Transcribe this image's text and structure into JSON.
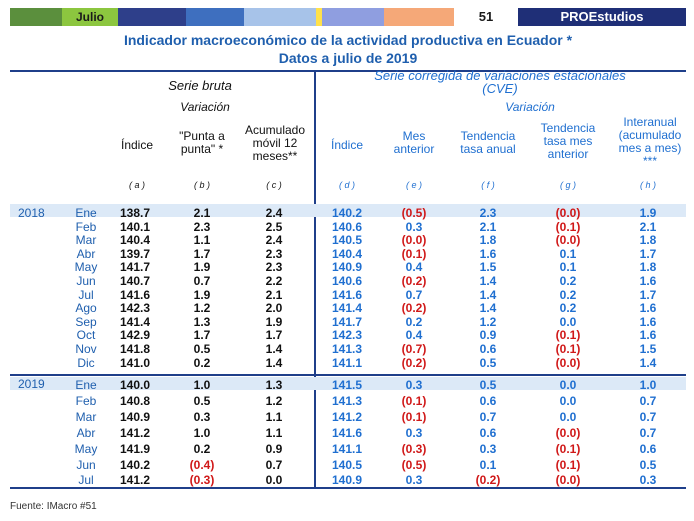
{
  "header_band": {
    "month": "Julio",
    "issue": "51",
    "brand": "PROEstudios"
  },
  "title_line1": "Indicador macroeconómico de la actividad  productiva en Ecuador *",
  "title_line2": "Datos a julio de 2019",
  "headers": {
    "serie_bruta": "Serie bruta",
    "variacion_left": "Variación",
    "serie_corregida_1": "Serie corregida de variaciones estacionales",
    "serie_corregida_2": "(CVE)",
    "variacion_right": "Variación",
    "a1": "Índice",
    "b1": "\"Punta a",
    "b2": "punta\" *",
    "c1": "Acumulado",
    "c2": "móvil 12",
    "c3": "meses**",
    "d1": "Índice",
    "e1": "Mes",
    "e2": "anterior",
    "f1": "Tendencia",
    "f2": "tasa anual",
    "g1": "Tendencia",
    "g2": "tasa mes",
    "g3": "anterior",
    "h1": "Interanual",
    "h2": "(acumulado",
    "h3": "mes a mes)",
    "h4": "***"
  },
  "letters": {
    "a": "( a )",
    "b": "( b )",
    "c": "( c )",
    "d": "( d )",
    "e": "( e )",
    "f": "( f )",
    "g": "( g )",
    "h": "( h )"
  },
  "colors": {
    "accent": "#1f5fae",
    "negative": "#d01818",
    "navy": "#1f3f8a"
  },
  "years": [
    "2018",
    "2019"
  ],
  "rows": [
    {
      "m": "Ene",
      "a": "138.7",
      "b": "2.1",
      "c": "2.4",
      "d": "140.2",
      "e": "(0.5)",
      "f": "2.3",
      "g": "(0.0)",
      "h": "1.9"
    },
    {
      "m": "Feb",
      "a": "140.1",
      "b": "2.3",
      "c": "2.5",
      "d": "140.6",
      "e": "0.3",
      "f": "2.1",
      "g": "(0.1)",
      "h": "2.1"
    },
    {
      "m": "Mar",
      "a": "140.4",
      "b": "1.1",
      "c": "2.4",
      "d": "140.5",
      "e": "(0.0)",
      "f": "1.8",
      "g": "(0.0)",
      "h": "1.8"
    },
    {
      "m": "Abr",
      "a": "139.7",
      "b": "1.7",
      "c": "2.3",
      "d": "140.4",
      "e": "(0.1)",
      "f": "1.6",
      "g": "0.1",
      "h": "1.7"
    },
    {
      "m": "May",
      "a": "141.7",
      "b": "1.9",
      "c": "2.3",
      "d": "140.9",
      "e": "0.4",
      "f": "1.5",
      "g": "0.1",
      "h": "1.8"
    },
    {
      "m": "Jun",
      "a": "140.7",
      "b": "0.7",
      "c": "2.2",
      "d": "140.6",
      "e": "(0.2)",
      "f": "1.4",
      "g": "0.2",
      "h": "1.6"
    },
    {
      "m": "Jul",
      "a": "141.6",
      "b": "1.9",
      "c": "2.1",
      "d": "141.6",
      "e": "0.7",
      "f": "1.4",
      "g": "0.2",
      "h": "1.7"
    },
    {
      "m": "Ago",
      "a": "142.3",
      "b": "1.2",
      "c": "2.0",
      "d": "141.4",
      "e": "(0.2)",
      "f": "1.4",
      "g": "0.2",
      "h": "1.6"
    },
    {
      "m": "Sep",
      "a": "141.4",
      "b": "1.3",
      "c": "1.9",
      "d": "141.7",
      "e": "0.2",
      "f": "1.2",
      "g": "0.0",
      "h": "1.6"
    },
    {
      "m": "Oct",
      "a": "142.9",
      "b": "1.7",
      "c": "1.7",
      "d": "142.3",
      "e": "0.4",
      "f": "0.9",
      "g": "(0.1)",
      "h": "1.6"
    },
    {
      "m": "Nov",
      "a": "141.8",
      "b": "0.5",
      "c": "1.4",
      "d": "141.3",
      "e": "(0.7)",
      "f": "0.6",
      "g": "(0.1)",
      "h": "1.5"
    },
    {
      "m": "Dic",
      "a": "141.0",
      "b": "0.2",
      "c": "1.4",
      "d": "141.1",
      "e": "(0.2)",
      "f": "0.5",
      "g": "(0.0)",
      "h": "1.4"
    },
    {
      "m": "Ene",
      "a": "140.0",
      "b": "1.0",
      "c": "1.3",
      "d": "141.5",
      "e": "0.3",
      "f": "0.5",
      "g": "0.0",
      "h": "1.0"
    },
    {
      "m": "Feb",
      "a": "140.8",
      "b": "0.5",
      "c": "1.2",
      "d": "141.3",
      "e": "(0.1)",
      "f": "0.6",
      "g": "0.0",
      "h": "0.7"
    },
    {
      "m": "Mar",
      "a": "140.9",
      "b": "0.3",
      "c": "1.1",
      "d": "141.2",
      "e": "(0.1)",
      "f": "0.7",
      "g": "0.0",
      "h": "0.7"
    },
    {
      "m": "Abr",
      "a": "141.2",
      "b": "1.0",
      "c": "1.1",
      "d": "141.6",
      "e": "0.3",
      "f": "0.6",
      "g": "(0.0)",
      "h": "0.7"
    },
    {
      "m": "May",
      "a": "141.9",
      "b": "0.2",
      "c": "0.9",
      "d": "141.1",
      "e": "(0.3)",
      "f": "0.3",
      "g": "(0.1)",
      "h": "0.6"
    },
    {
      "m": "Jun",
      "a": "140.2",
      "b": "(0.4)",
      "c": "0.7",
      "d": "140.5",
      "e": "(0.5)",
      "f": "0.1",
      "g": "(0.1)",
      "h": "0.5"
    },
    {
      "m": "Jul",
      "a": "141.2",
      "b": "(0.3)",
      "c": "0.0",
      "d": "140.9",
      "e": "0.3",
      "f": "(0.2)",
      "g": "(0.0)",
      "h": "0.3"
    }
  ],
  "source": "Fuente: IMacro #51"
}
